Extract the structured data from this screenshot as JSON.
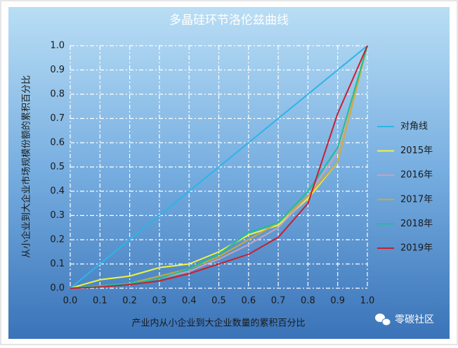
{
  "chart_data": {
    "type": "line",
    "title": "多晶硅环节洛伦兹曲线",
    "x_label": "产业内从小企业到大企业数量的累积百分比",
    "y_label": "从小企业到大企业市场规模份额的累积百分比",
    "x": [
      0,
      0.1,
      0.2,
      0.3,
      0.4,
      0.5,
      0.6,
      0.7,
      0.8,
      0.9,
      1
    ],
    "series": [
      {
        "name": "对角线",
        "color": "#2cb5e6",
        "values": [
          0,
          0.1,
          0.2,
          0.3,
          0.4,
          0.5,
          0.6,
          0.7,
          0.8,
          0.9,
          1
        ]
      },
      {
        "name": "2015年",
        "color": "#eef53c",
        "values": [
          0,
          0.035,
          0.05,
          0.085,
          0.1,
          0.15,
          0.22,
          0.26,
          0.37,
          0.52,
          1
        ]
      },
      {
        "name": "2016年",
        "color": "#c9a3b8",
        "values": [
          0,
          0.01,
          0.02,
          0.04,
          0.07,
          0.12,
          0.18,
          0.25,
          0.38,
          0.56,
          1
        ]
      },
      {
        "name": "2017年",
        "color": "#c9a93c",
        "values": [
          0,
          0.01,
          0.02,
          0.05,
          0.08,
          0.13,
          0.2,
          0.27,
          0.38,
          0.52,
          1
        ]
      },
      {
        "name": "2018年",
        "color": "#1fbf98",
        "values": [
          0,
          0.01,
          0.02,
          0.04,
          0.08,
          0.14,
          0.23,
          0.27,
          0.4,
          0.58,
          1
        ]
      },
      {
        "name": "2019年",
        "color": "#c8202f",
        "values": [
          0,
          0.005,
          0.015,
          0.03,
          0.06,
          0.1,
          0.14,
          0.21,
          0.35,
          0.72,
          1
        ]
      }
    ],
    "xlim": [
      0,
      1
    ],
    "ylim": [
      0,
      1
    ],
    "xticks": [
      {
        "value": 0,
        "label": "0.0"
      },
      0.1,
      0.2,
      0.3,
      0.4,
      0.5,
      0.6,
      0.7,
      0.8,
      0.9,
      {
        "value": 1,
        "label": "1.0"
      }
    ],
    "yticks": [
      {
        "value": 0,
        "label": "0.0"
      },
      0.1,
      0.2,
      0.3,
      0.4,
      0.5,
      0.6,
      0.7,
      0.8,
      0.9,
      {
        "value": 1,
        "label": "1.0"
      }
    ],
    "grid": true,
    "legend": "right"
  },
  "watermark": "零碳社区"
}
